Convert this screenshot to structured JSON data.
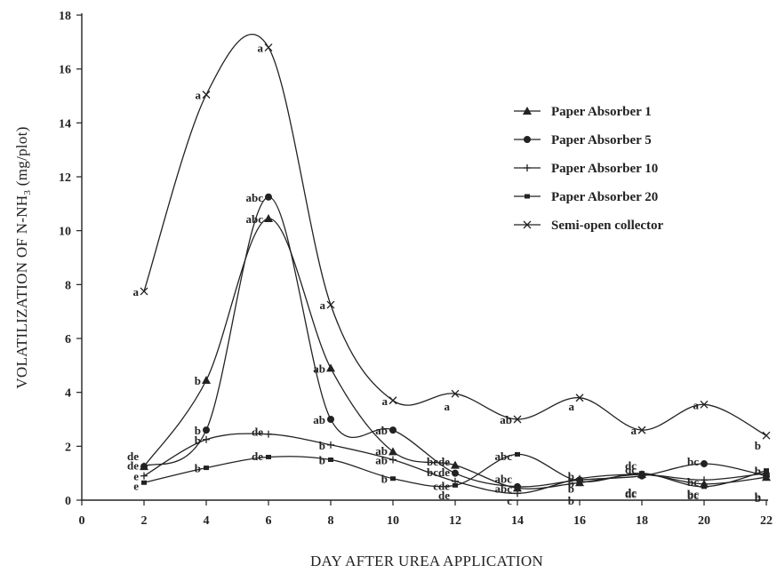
{
  "chart_data": {
    "type": "line",
    "xlabel": "DAY AFTER UREA APPLICATION",
    "ylabel_main": "VOLATILIZATION OF N-NH",
    "ylabel_sub": "3",
    "ylabel_end": " (mg/plot)",
    "xlim": [
      0,
      22
    ],
    "ylim": [
      0,
      18
    ],
    "x_ticks": [
      "0",
      "2",
      "4",
      "6",
      "8",
      "10",
      "12",
      "14",
      "16",
      "18",
      "20",
      "22"
    ],
    "y_ticks": [
      "0",
      "2",
      "4",
      "6",
      "8",
      "10",
      "12",
      "14",
      "16",
      "18"
    ],
    "x": [
      2,
      4,
      6,
      8,
      10,
      12,
      14,
      16,
      18,
      20,
      22
    ],
    "grid": false,
    "legend_position": "top-right",
    "series": [
      {
        "name": "Paper Absorber 1",
        "marker": "triangle",
        "values": [
          1.25,
          4.45,
          10.45,
          4.9,
          1.8,
          1.3,
          0.45,
          0.65,
          0.95,
          0.6,
          0.85
        ]
      },
      {
        "name": "Paper Absorber 5",
        "marker": "circle",
        "values": [
          1.25,
          2.6,
          11.25,
          3.0,
          2.6,
          1.0,
          0.5,
          0.75,
          0.9,
          1.35,
          0.9
        ]
      },
      {
        "name": "Paper Absorber 10",
        "marker": "plus",
        "values": [
          0.9,
          2.25,
          2.45,
          2.05,
          1.5,
          0.7,
          0.25,
          0.8,
          0.95,
          0.75,
          1.0
        ]
      },
      {
        "name": "Paper Absorber 20",
        "marker": "square",
        "values": [
          0.65,
          1.2,
          1.6,
          1.5,
          0.8,
          0.55,
          1.7,
          0.7,
          1.0,
          0.5,
          1.1
        ]
      },
      {
        "name": "Semi-open collector",
        "marker": "x",
        "values": [
          7.75,
          15.05,
          16.8,
          7.25,
          3.7,
          3.95,
          3.0,
          3.8,
          2.6,
          3.55,
          2.4
        ]
      }
    ],
    "annotations": [
      {
        "x": 2,
        "y": 7.75,
        "text": "a"
      },
      {
        "x": 4,
        "y": 15.05,
        "text": "a"
      },
      {
        "x": 6,
        "y": 16.8,
        "text": "a"
      },
      {
        "x": 8,
        "y": 7.25,
        "text": "a"
      },
      {
        "x": 10,
        "y": 3.7,
        "text": "a"
      },
      {
        "x": 12,
        "y": 3.5,
        "text": "a"
      },
      {
        "x": 14,
        "y": 3.0,
        "text": "ab"
      },
      {
        "x": 16,
        "y": 3.5,
        "text": "a"
      },
      {
        "x": 18,
        "y": 2.6,
        "text": "a"
      },
      {
        "x": 20,
        "y": 3.55,
        "text": "a"
      },
      {
        "x": 22,
        "y": 2.05,
        "text": "b"
      },
      {
        "x": 2,
        "y": 1.65,
        "text": "de"
      },
      {
        "x": 2,
        "y": 1.3,
        "text": "de"
      },
      {
        "x": 2,
        "y": 0.9,
        "text": "e"
      },
      {
        "x": 2,
        "y": 0.55,
        "text": "e"
      },
      {
        "x": 4,
        "y": 4.45,
        "text": "b"
      },
      {
        "x": 4,
        "y": 2.6,
        "text": "b"
      },
      {
        "x": 4,
        "y": 2.25,
        "text": "b"
      },
      {
        "x": 4,
        "y": 1.2,
        "text": "b"
      },
      {
        "x": 6,
        "y": 11.25,
        "text": "abc"
      },
      {
        "x": 6,
        "y": 10.45,
        "text": "abc"
      },
      {
        "x": 6,
        "y": 2.55,
        "text": "de"
      },
      {
        "x": 6,
        "y": 1.65,
        "text": "de"
      },
      {
        "x": 8,
        "y": 4.9,
        "text": "ab"
      },
      {
        "x": 8,
        "y": 3.0,
        "text": "ab"
      },
      {
        "x": 8,
        "y": 2.05,
        "text": "b"
      },
      {
        "x": 8,
        "y": 1.5,
        "text": "b"
      },
      {
        "x": 10,
        "y": 2.6,
        "text": "ab"
      },
      {
        "x": 10,
        "y": 1.85,
        "text": "ab"
      },
      {
        "x": 10,
        "y": 1.5,
        "text": "ab"
      },
      {
        "x": 10,
        "y": 0.8,
        "text": "b"
      },
      {
        "x": 12,
        "y": 1.45,
        "text": "bcde"
      },
      {
        "x": 12,
        "y": 1.05,
        "text": "bcde"
      },
      {
        "x": 12,
        "y": 0.55,
        "text": "cde"
      },
      {
        "x": 12,
        "y": 0.2,
        "text": "de"
      },
      {
        "x": 14,
        "y": 1.65,
        "text": "abc"
      },
      {
        "x": 14,
        "y": 0.8,
        "text": "abc"
      },
      {
        "x": 14,
        "y": 0.45,
        "text": "abc"
      },
      {
        "x": 14,
        "y": 0.0,
        "text": "c"
      },
      {
        "x": 16,
        "y": 0.9,
        "text": "b"
      },
      {
        "x": 16,
        "y": 0.65,
        "text": "b"
      },
      {
        "x": 16,
        "y": 0.45,
        "text": "b"
      },
      {
        "x": 16,
        "y": 0.0,
        "text": "b"
      },
      {
        "x": 18,
        "y": 1.3,
        "text": "dc"
      },
      {
        "x": 18,
        "y": 1.15,
        "text": "dc"
      },
      {
        "x": 18,
        "y": 0.3,
        "text": "dc"
      },
      {
        "x": 18,
        "y": 0.25,
        "text": "dc"
      },
      {
        "x": 20,
        "y": 1.45,
        "text": "bc"
      },
      {
        "x": 20,
        "y": 0.7,
        "text": "bc"
      },
      {
        "x": 20,
        "y": 0.2,
        "text": "bc"
      },
      {
        "x": 20,
        "y": 0.25,
        "text": "bc"
      },
      {
        "x": 22,
        "y": 1.1,
        "text": "b"
      },
      {
        "x": 22,
        "y": 1.1,
        "text": "b"
      },
      {
        "x": 22,
        "y": 0.15,
        "text": "b"
      },
      {
        "x": 22,
        "y": 0.1,
        "text": "b"
      }
    ]
  }
}
